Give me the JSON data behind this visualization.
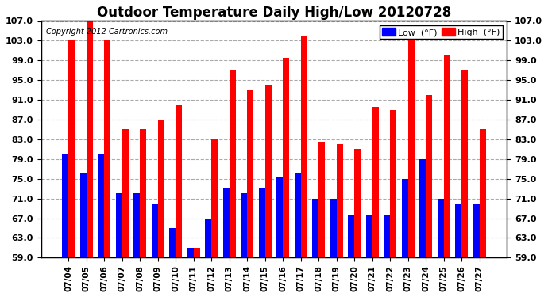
{
  "title": "Outdoor Temperature Daily High/Low 20120728",
  "copyright_text": "Copyright 2012 Cartronics.com",
  "dates": [
    "07/04",
    "07/05",
    "07/06",
    "07/07",
    "07/08",
    "07/09",
    "07/10",
    "07/11",
    "07/12",
    "07/13",
    "07/14",
    "07/15",
    "07/16",
    "07/17",
    "07/18",
    "07/19",
    "07/20",
    "07/21",
    "07/22",
    "07/23",
    "07/24",
    "07/25",
    "07/26",
    "07/27"
  ],
  "high_values": [
    103.0,
    107.0,
    103.0,
    85.0,
    85.0,
    87.0,
    90.0,
    61.0,
    83.0,
    97.0,
    93.0,
    94.0,
    99.5,
    104.0,
    82.5,
    82.0,
    81.0,
    89.5,
    89.0,
    103.5,
    92.0,
    100.0,
    97.0,
    85.0
  ],
  "low_values": [
    80.0,
    76.0,
    80.0,
    72.0,
    72.0,
    70.0,
    65.0,
    61.0,
    67.0,
    73.0,
    72.0,
    73.0,
    75.5,
    76.0,
    71.0,
    71.0,
    67.5,
    67.5,
    67.5,
    75.0,
    79.0,
    71.0,
    70.0,
    70.0
  ],
  "ylim_min": 59.0,
  "ylim_max": 107.0,
  "yticks": [
    59.0,
    63.0,
    67.0,
    71.0,
    75.0,
    79.0,
    83.0,
    87.0,
    91.0,
    95.0,
    99.0,
    103.0,
    107.0
  ],
  "bar_color_high": "#ff0000",
  "bar_color_low": "#0000ff",
  "bg_color": "#ffffff",
  "grid_color": "#aaaaaa",
  "title_fontsize": 12,
  "legend_low_label": "Low  (°F)",
  "legend_high_label": "High  (°F)"
}
